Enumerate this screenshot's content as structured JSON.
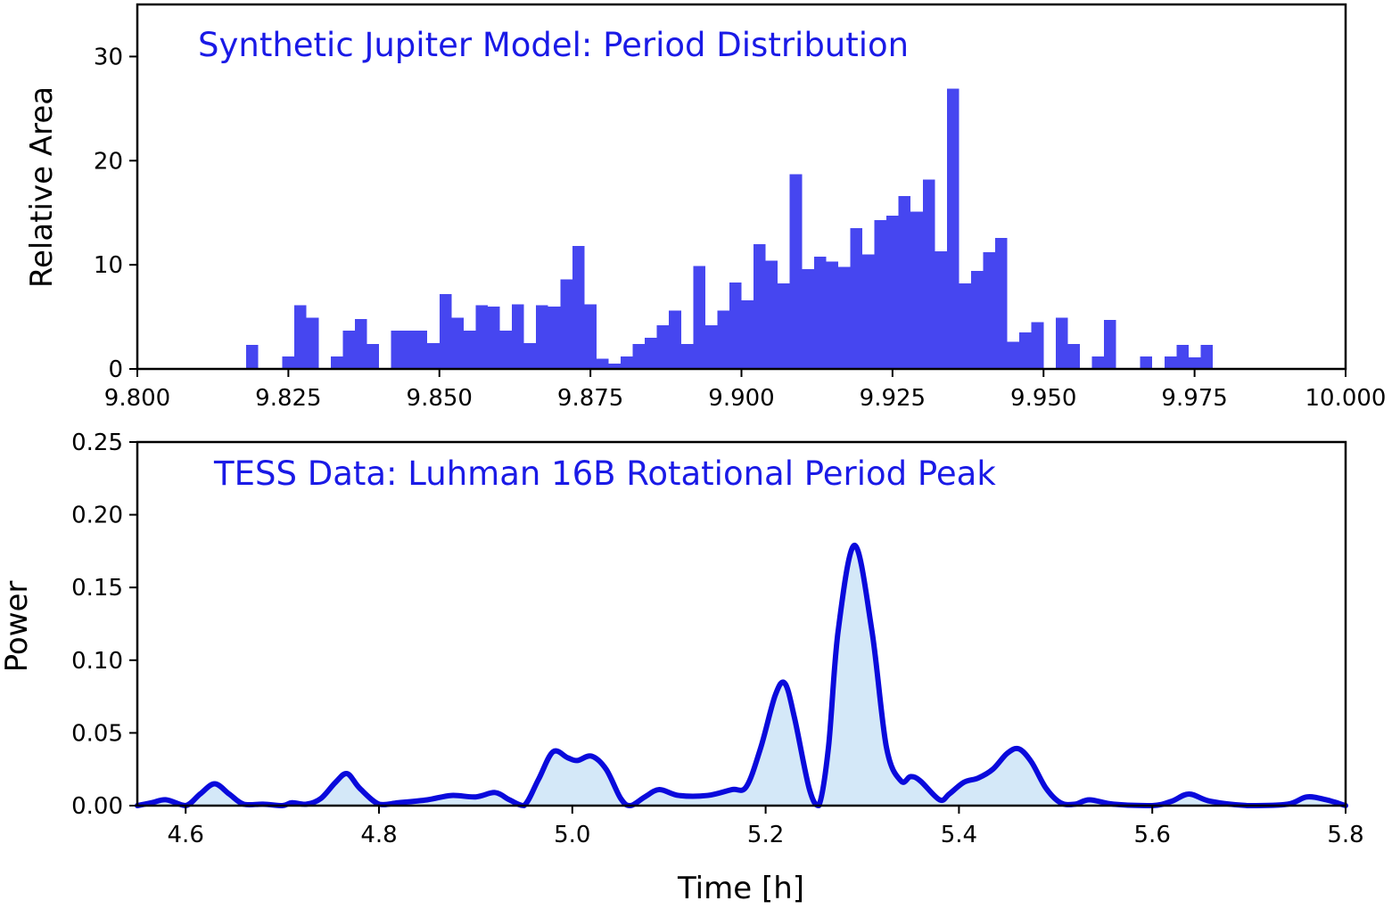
{
  "colors": {
    "hist_bar": "#4646f0",
    "title_text": "#1a1ae6",
    "line": "#0a0adc",
    "fill": "#d4e8f8",
    "axis": "#000000"
  },
  "chart_data": [
    {
      "type": "bar",
      "title": "Synthetic Jupiter Model: Period Distribution",
      "xlabel": "",
      "ylabel": "Relative Area",
      "xlim": [
        9.8,
        10.0
      ],
      "ylim": [
        0,
        35
      ],
      "grid": false,
      "xticks": [
        9.8,
        9.825,
        9.85,
        9.875,
        9.9,
        9.925,
        9.95,
        9.975,
        10.0
      ],
      "xtick_labels": [
        "9.800",
        "9.825",
        "9.850",
        "9.875",
        "9.900",
        "9.925",
        "9.950",
        "9.975",
        "10.000"
      ],
      "yticks": [
        0,
        10,
        20,
        30
      ],
      "ytick_labels": [
        "0",
        "10",
        "20",
        "30"
      ],
      "bin_width": 0.002,
      "bin_left_edges": [
        9.818,
        9.82,
        9.822,
        9.824,
        9.826,
        9.828,
        9.83,
        9.832,
        9.834,
        9.836,
        9.838,
        9.84,
        9.842,
        9.844,
        9.846,
        9.848,
        9.85,
        9.852,
        9.854,
        9.856,
        9.858,
        9.86,
        9.862,
        9.864,
        9.866,
        9.868,
        9.87,
        9.872,
        9.874,
        9.876,
        9.878,
        9.88,
        9.882,
        9.884,
        9.886,
        9.888,
        9.89,
        9.892,
        9.894,
        9.896,
        9.898,
        9.9,
        9.902,
        9.904,
        9.906,
        9.908,
        9.91,
        9.912,
        9.914,
        9.916,
        9.918,
        9.92,
        9.922,
        9.924,
        9.926,
        9.928,
        9.93,
        9.932,
        9.934,
        9.936,
        9.938,
        9.94,
        9.942,
        9.944,
        9.946,
        9.948,
        9.95,
        9.952,
        9.954,
        9.956,
        9.958,
        9.96,
        9.962,
        9.964,
        9.966,
        9.968,
        9.97,
        9.972,
        9.974,
        9.976,
        9.978,
        9.98,
        9.982,
        9.984
      ],
      "values": [
        2.3,
        0,
        0,
        1.2,
        6.1,
        4.9,
        0,
        1.2,
        3.7,
        4.8,
        2.4,
        0,
        3.7,
        3.7,
        3.7,
        2.5,
        7.2,
        4.9,
        3.7,
        6.1,
        6.0,
        3.7,
        6.2,
        2.5,
        6.1,
        6.0,
        8.6,
        11.8,
        6.2,
        1.0,
        0.5,
        1.2,
        2.4,
        3.0,
        4.2,
        5.6,
        2.4,
        9.9,
        4.2,
        5.6,
        8.3,
        6.6,
        12.0,
        10.4,
        8.2,
        18.7,
        9.6,
        10.8,
        10.3,
        9.8,
        13.5,
        11.0,
        14.3,
        14.7,
        16.6,
        15.1,
        18.2,
        11.3,
        26.9,
        8.2,
        9.4,
        11.2,
        12.6,
        2.6,
        3.5,
        4.5,
        0,
        4.9,
        2.4,
        0,
        1.2,
        4.7,
        0,
        0,
        1.2,
        0,
        1.2,
        2.3,
        1.1,
        2.3,
        0,
        0,
        0,
        0
      ]
    },
    {
      "type": "area",
      "title": "TESS Data: Luhman 16B Rotational Period Peak",
      "xlabel": "Time [h]",
      "ylabel": "Power",
      "xlim": [
        4.55,
        5.8
      ],
      "ylim": [
        0,
        0.25
      ],
      "grid": false,
      "xticks": [
        4.6,
        4.8,
        5.0,
        5.2,
        5.4,
        5.6,
        5.8
      ],
      "xtick_labels": [
        "4.6",
        "4.8",
        "5.0",
        "5.2",
        "5.4",
        "5.6",
        "5.8"
      ],
      "yticks": [
        0,
        0.05,
        0.1,
        0.15,
        0.2,
        0.25
      ],
      "ytick_labels": [
        "0.00",
        "0.05",
        "0.10",
        "0.15",
        "0.20",
        "0.25"
      ],
      "x": [
        4.55,
        4.565,
        4.58,
        4.6,
        4.615,
        4.63,
        4.645,
        4.66,
        4.68,
        4.7,
        4.71,
        4.725,
        4.74,
        4.755,
        4.767,
        4.78,
        4.8,
        4.82,
        4.85,
        4.875,
        4.9,
        4.92,
        4.935,
        4.95,
        4.965,
        4.98,
        4.995,
        5.005,
        5.02,
        5.035,
        5.05,
        5.06,
        5.075,
        5.09,
        5.11,
        5.14,
        5.165,
        5.18,
        5.195,
        5.21,
        5.22,
        5.23,
        5.245,
        5.255,
        5.265,
        5.275,
        5.292,
        5.31,
        5.325,
        5.34,
        5.35,
        5.36,
        5.38,
        5.39,
        5.405,
        5.42,
        5.435,
        5.45,
        5.462,
        5.475,
        5.49,
        5.505,
        5.52,
        5.535,
        5.56,
        5.6,
        5.62,
        5.638,
        5.66,
        5.7,
        5.74,
        5.76,
        5.78,
        5.8
      ],
      "y": [
        0.0,
        0.002,
        0.004,
        0.0,
        0.008,
        0.015,
        0.008,
        0.001,
        0.001,
        0.0,
        0.002,
        0.001,
        0.005,
        0.016,
        0.022,
        0.012,
        0.001,
        0.002,
        0.004,
        0.007,
        0.006,
        0.009,
        0.004,
        0.0,
        0.018,
        0.037,
        0.033,
        0.031,
        0.034,
        0.025,
        0.005,
        0.0,
        0.006,
        0.011,
        0.007,
        0.007,
        0.011,
        0.013,
        0.04,
        0.076,
        0.084,
        0.06,
        0.012,
        0.0,
        0.04,
        0.12,
        0.179,
        0.12,
        0.04,
        0.017,
        0.02,
        0.017,
        0.004,
        0.008,
        0.016,
        0.019,
        0.025,
        0.036,
        0.039,
        0.03,
        0.012,
        0.002,
        0.001,
        0.004,
        0.001,
        0.0,
        0.003,
        0.008,
        0.003,
        0.0,
        0.001,
        0.006,
        0.004,
        0.0
      ]
    }
  ]
}
